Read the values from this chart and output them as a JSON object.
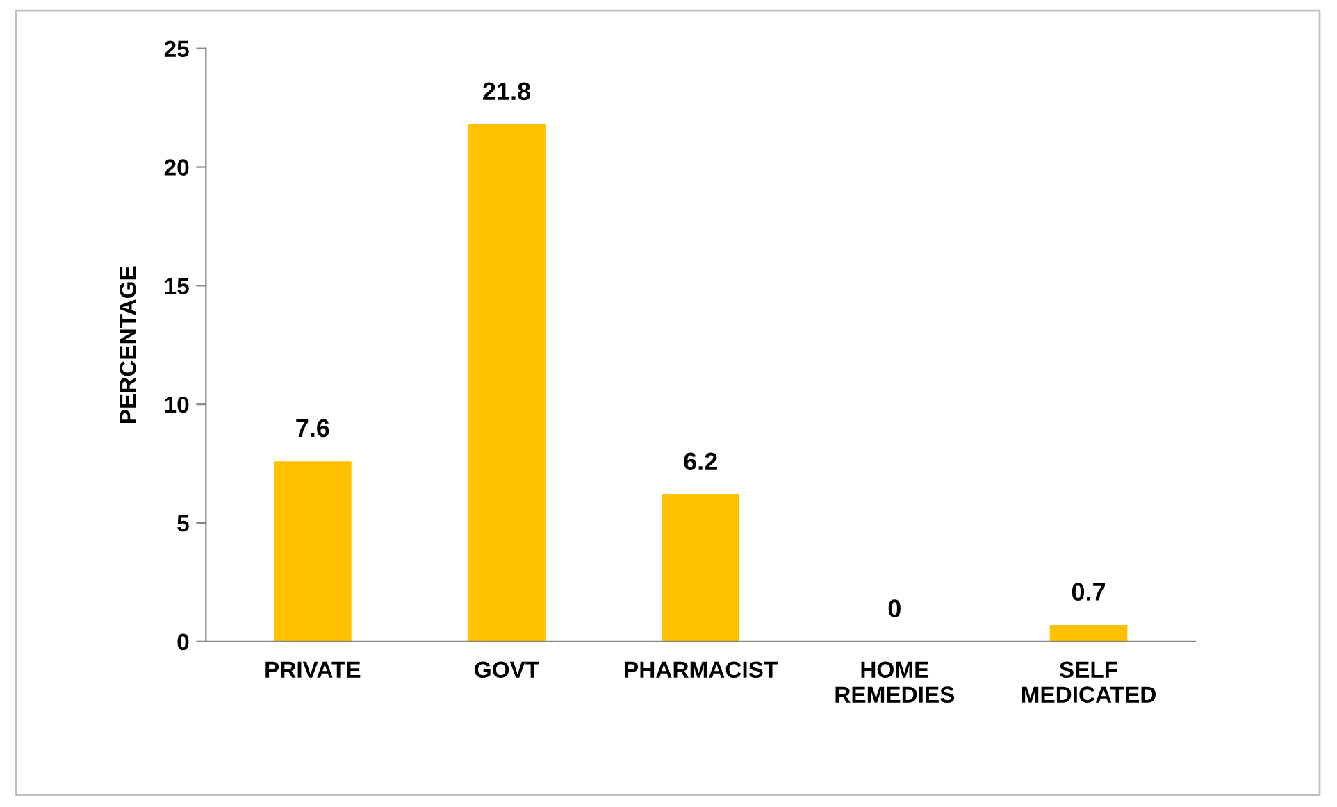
{
  "chart_data": {
    "type": "bar",
    "ylabel": "PERCENTAGE",
    "categories": [
      "PRIVATE",
      "GOVT",
      "PHARMACIST",
      "HOME\nREMEDIES",
      "SELF\nMEDICATED"
    ],
    "values": [
      7.6,
      21.8,
      6.2,
      0,
      0.7
    ],
    "color": "#ffc000",
    "ylim": [
      0,
      25
    ],
    "yticks": [
      0,
      5,
      10,
      15,
      20,
      25
    ],
    "grid": false,
    "data_labels": true
  }
}
